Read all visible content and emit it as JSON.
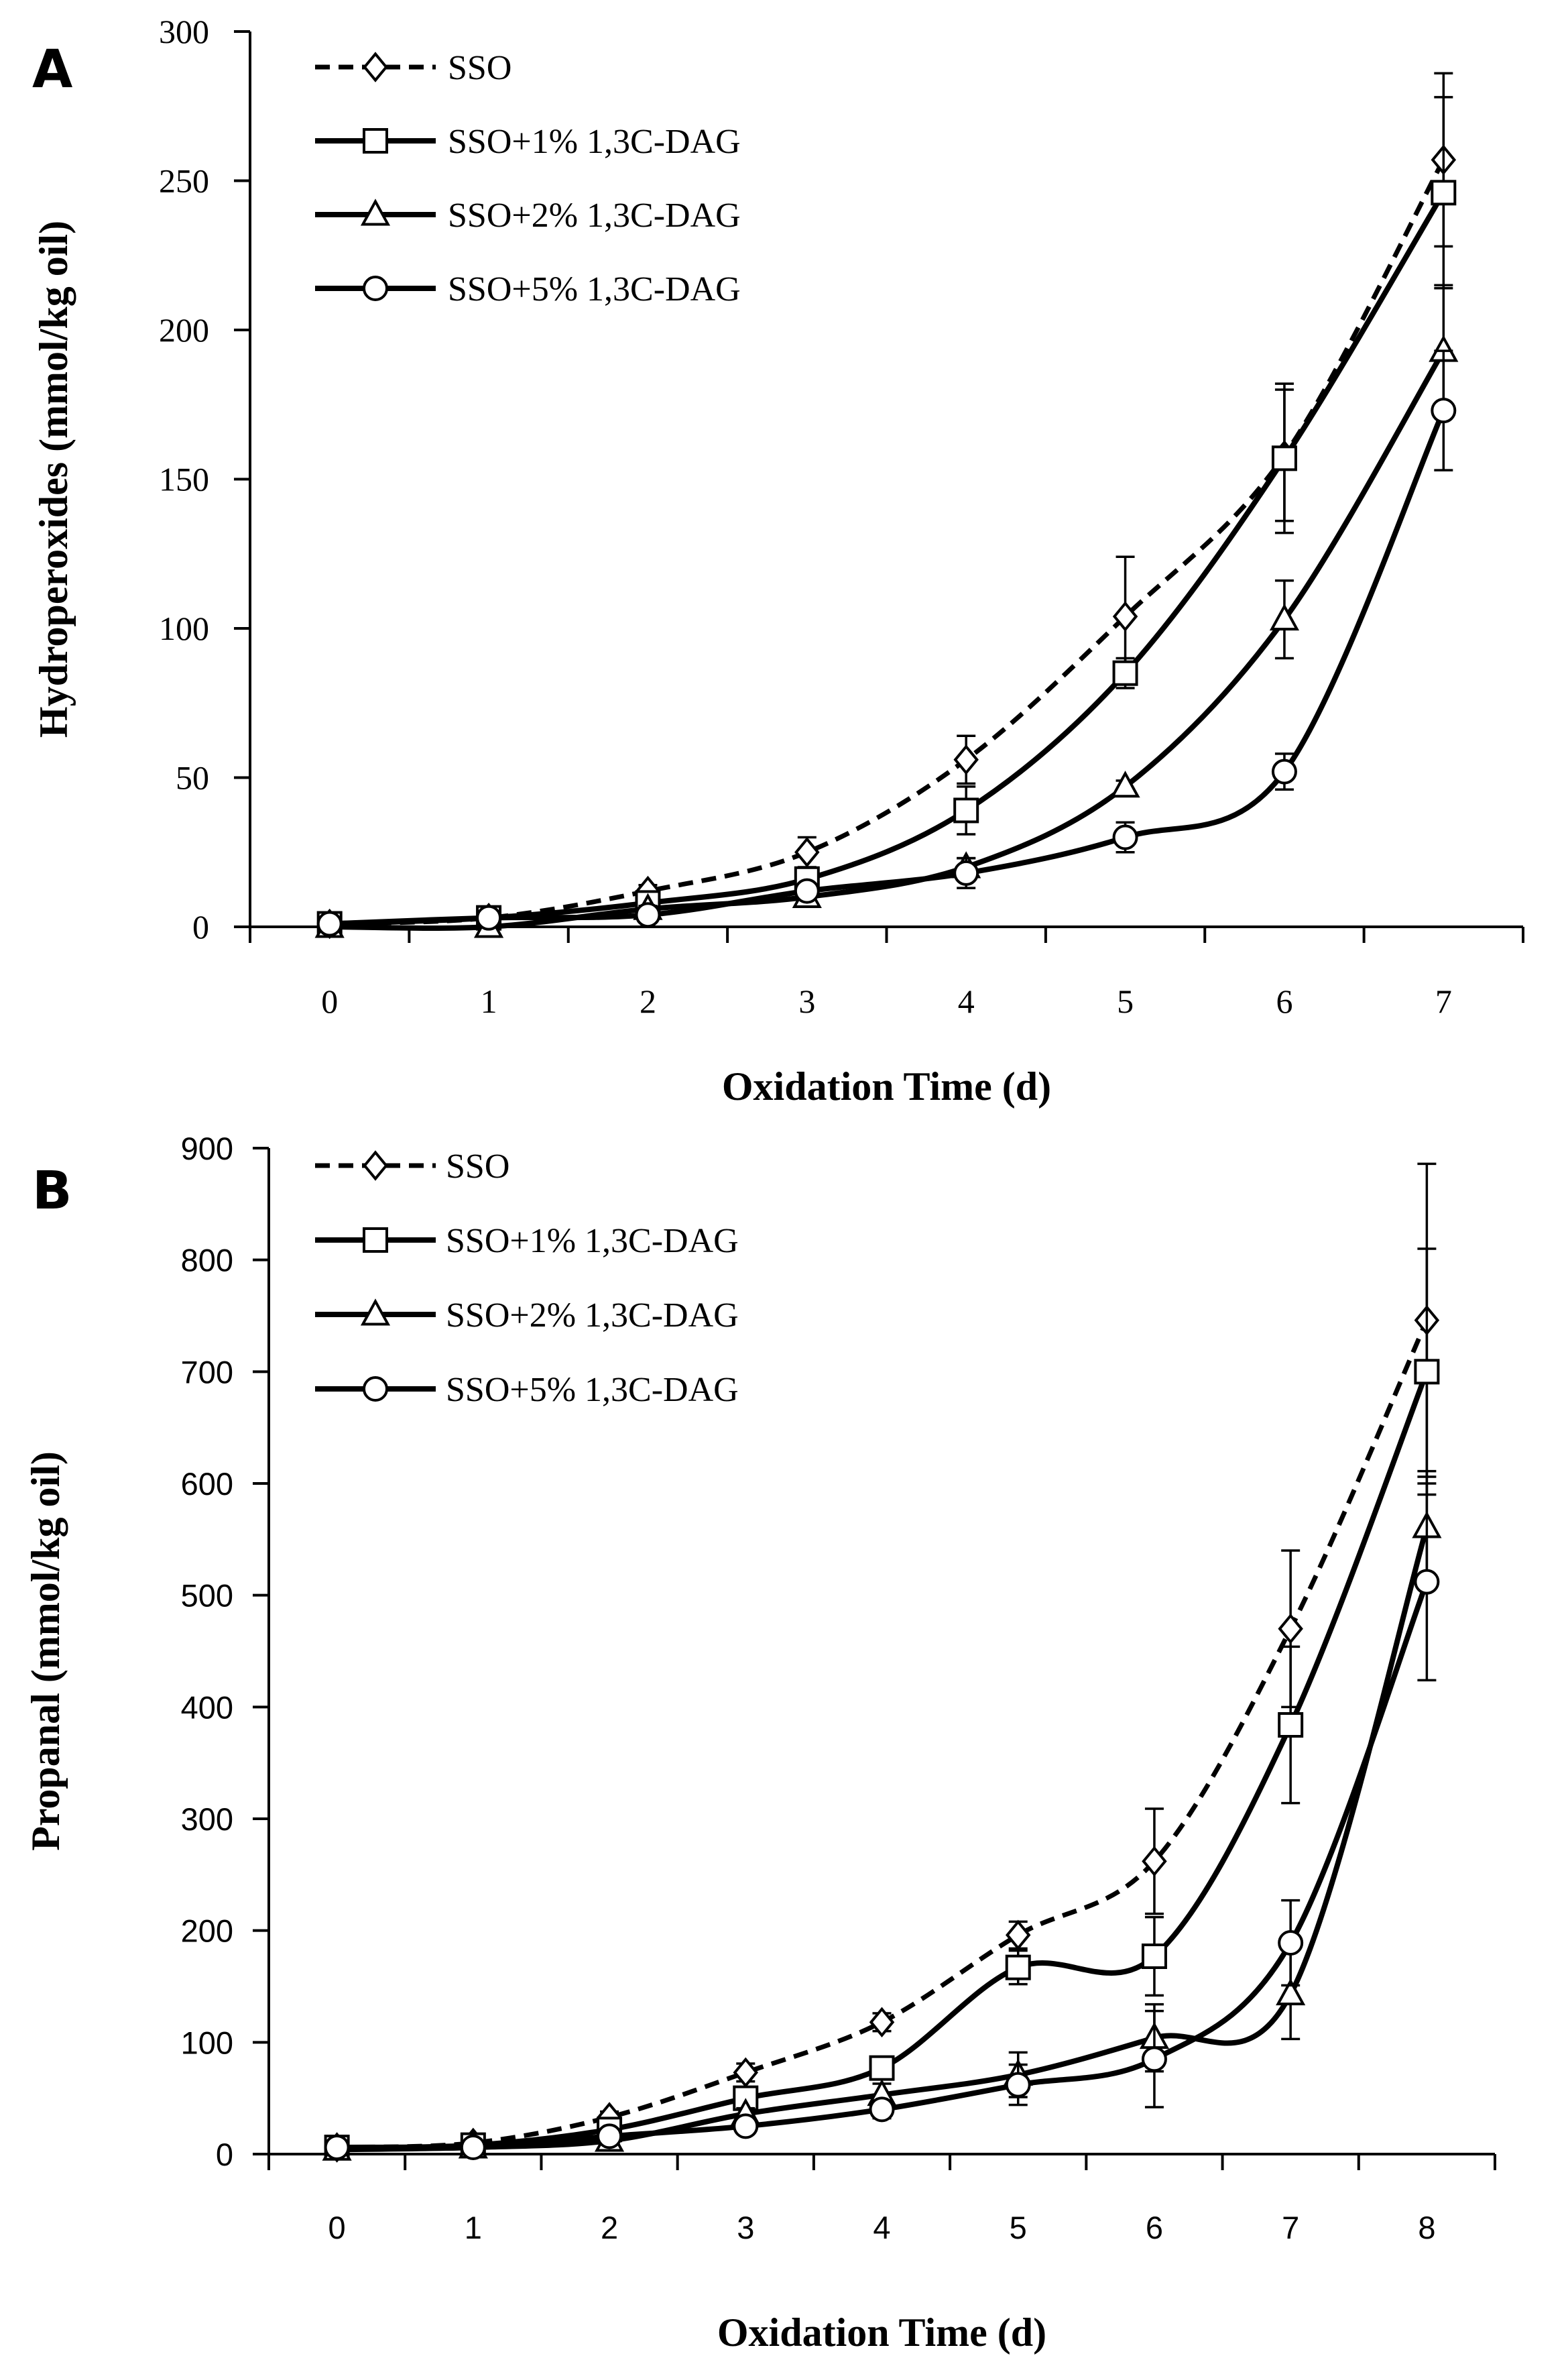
{
  "chart_data": [
    {
      "panel": "A",
      "type": "line",
      "title": "",
      "xlabel": "Oxidation Time (d)",
      "ylabel": "Hydroperoxides (mmol/kg oil)",
      "xlim": [
        -0.5,
        7.5
      ],
      "ylim": [
        0,
        300
      ],
      "x_ticks": [
        0,
        1,
        2,
        3,
        4,
        5,
        6,
        7
      ],
      "y_ticks": [
        0,
        50,
        100,
        150,
        200,
        250,
        300
      ],
      "grid": false,
      "legend_position": "top-left",
      "x": [
        0,
        1,
        2,
        3,
        4,
        5,
        6,
        7
      ],
      "series": [
        {
          "name": "SSO",
          "marker": "diamond",
          "dashed": true,
          "values": [
            1,
            3,
            12,
            25,
            56,
            104,
            158,
            257
          ],
          "errors": [
            0,
            1,
            2,
            5,
            8,
            20,
            22,
            29
          ]
        },
        {
          "name": "SSO+1% 1,3C-DAG",
          "marker": "square",
          "dashed": false,
          "values": [
            1,
            3,
            8,
            16,
            39,
            85,
            157,
            246
          ],
          "errors": [
            0,
            1,
            2,
            3,
            8,
            5,
            25,
            32
          ]
        },
        {
          "name": "SSO+2% 1,3C-DAG",
          "marker": "triangle",
          "dashed": false,
          "values": [
            0,
            0,
            6,
            10,
            20,
            47,
            103,
            193
          ],
          "errors": [
            0,
            0,
            1,
            3,
            3,
            2,
            13,
            22
          ]
        },
        {
          "name": "SSO+5% 1,3C-DAG",
          "marker": "circle",
          "dashed": false,
          "values": [
            1,
            3,
            4,
            12,
            18,
            30,
            52,
            173
          ],
          "errors": [
            0,
            0,
            1,
            2,
            5,
            5,
            6,
            20
          ]
        }
      ]
    },
    {
      "panel": "B",
      "type": "line",
      "title": "",
      "xlabel": "Oxidation Time (d)",
      "ylabel": "Propanal (mmol/kg oil)",
      "xlim": [
        -0.5,
        8.5
      ],
      "ylim": [
        0,
        900
      ],
      "x_ticks": [
        0,
        1,
        2,
        3,
        4,
        5,
        6,
        7,
        8
      ],
      "y_ticks": [
        0,
        100,
        200,
        300,
        400,
        500,
        600,
        700,
        800,
        900
      ],
      "grid": false,
      "legend_position": "top-left",
      "x": [
        0,
        1,
        2,
        3,
        4,
        5,
        6,
        7,
        8
      ],
      "series": [
        {
          "name": "SSO",
          "marker": "diamond",
          "dashed": true,
          "values": [
            6,
            10,
            33,
            73,
            118,
            196,
            262,
            470,
            746
          ],
          "errors": [
            0,
            2,
            5,
            8,
            8,
            12,
            47,
            70,
            140
          ]
        },
        {
          "name": "SSO+1% 1,3C-DAG",
          "marker": "square",
          "dashed": false,
          "values": [
            6,
            8,
            22,
            50,
            77,
            167,
            177,
            384,
            700
          ],
          "errors": [
            0,
            1,
            4,
            6,
            8,
            15,
            35,
            70,
            110
          ]
        },
        {
          "name": "SSO+2% 1,3C-DAG",
          "marker": "triangle",
          "dashed": false,
          "values": [
            4,
            6,
            12,
            36,
            53,
            71,
            104,
            143,
            561
          ],
          "errors": [
            0,
            1,
            3,
            5,
            10,
            20,
            30,
            40,
            50
          ]
        },
        {
          "name": "SSO+5% 1,3C-DAG",
          "marker": "circle",
          "dashed": false,
          "values": [
            6,
            6,
            16,
            25,
            40,
            62,
            85,
            189,
            512
          ],
          "errors": [
            0,
            1,
            3,
            5,
            8,
            18,
            43,
            38,
            88
          ]
        }
      ]
    }
  ]
}
